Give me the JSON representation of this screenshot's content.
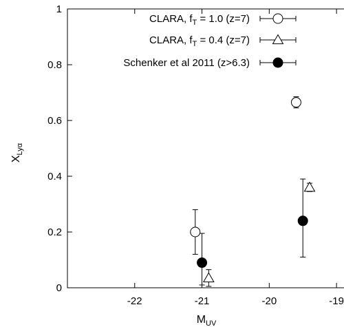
{
  "chart_data": {
    "type": "scatter",
    "title": "",
    "xlabel": {
      "main": "M",
      "sub": "UV"
    },
    "ylabel": {
      "main": "X",
      "sub": "Lyα"
    },
    "xlim": [
      -23,
      -18.5
    ],
    "ylim": [
      0,
      1
    ],
    "x_ticks": [
      -22,
      -21,
      -20,
      -19
    ],
    "x_tick_labels": [
      "-22",
      "-21",
      "-20",
      "-19"
    ],
    "y_ticks": [
      0,
      0.2,
      0.4,
      0.6,
      0.8,
      1
    ],
    "y_tick_labels": [
      "0",
      "0.2",
      "0.4",
      "0.6",
      "0.8",
      "1"
    ],
    "grid": false,
    "legend_position": "top-right",
    "series": [
      {
        "legend": {
          "pre": "CLARA, f",
          "sub": "T",
          "post": " = 1.0 (z=7)"
        },
        "marker": "open-circle",
        "points": [
          {
            "x": -21.1,
            "y": 0.2,
            "err_low": 0.08,
            "err_high": 0.08
          },
          {
            "x": -19.6,
            "y": 0.665,
            "err_low": 0.02,
            "err_high": 0.02
          }
        ]
      },
      {
        "legend": {
          "pre": "CLARA, f",
          "sub": "T",
          "post": " = 0.4 (z=7)"
        },
        "marker": "open-triangle",
        "points": [
          {
            "x": -20.9,
            "y": 0.035,
            "err_low": 0.03,
            "err_high": 0.03
          },
          {
            "x": -19.4,
            "y": 0.36,
            "err_low": 0.015,
            "err_high": 0.015
          }
        ]
      },
      {
        "legend": {
          "pre": "Schenker et al 2011 (z>6.3)",
          "sub": "",
          "post": ""
        },
        "marker": "filled-circle",
        "points": [
          {
            "x": -21.0,
            "y": 0.09,
            "err_low": 0.08,
            "err_high": 0.105
          },
          {
            "x": -19.5,
            "y": 0.24,
            "err_low": 0.13,
            "err_high": 0.15
          }
        ]
      }
    ]
  }
}
